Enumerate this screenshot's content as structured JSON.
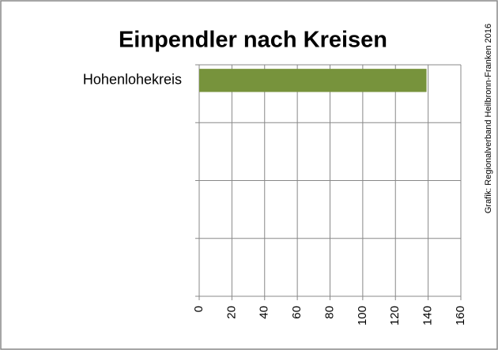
{
  "chart_data": {
    "type": "bar",
    "orientation": "horizontal",
    "title": "Einpendler nach Kreisen",
    "credit": "Grafik: Regionalverband Heilbronn-Franken 2016",
    "categories": [
      "Hohenlohekreis",
      null,
      null,
      null
    ],
    "values": [
      139,
      null,
      null,
      null
    ],
    "color": "#77933c",
    "xlim": [
      0,
      160
    ],
    "xticks": [
      0,
      20,
      40,
      60,
      80,
      100,
      120,
      140,
      160
    ],
    "grid": true
  }
}
